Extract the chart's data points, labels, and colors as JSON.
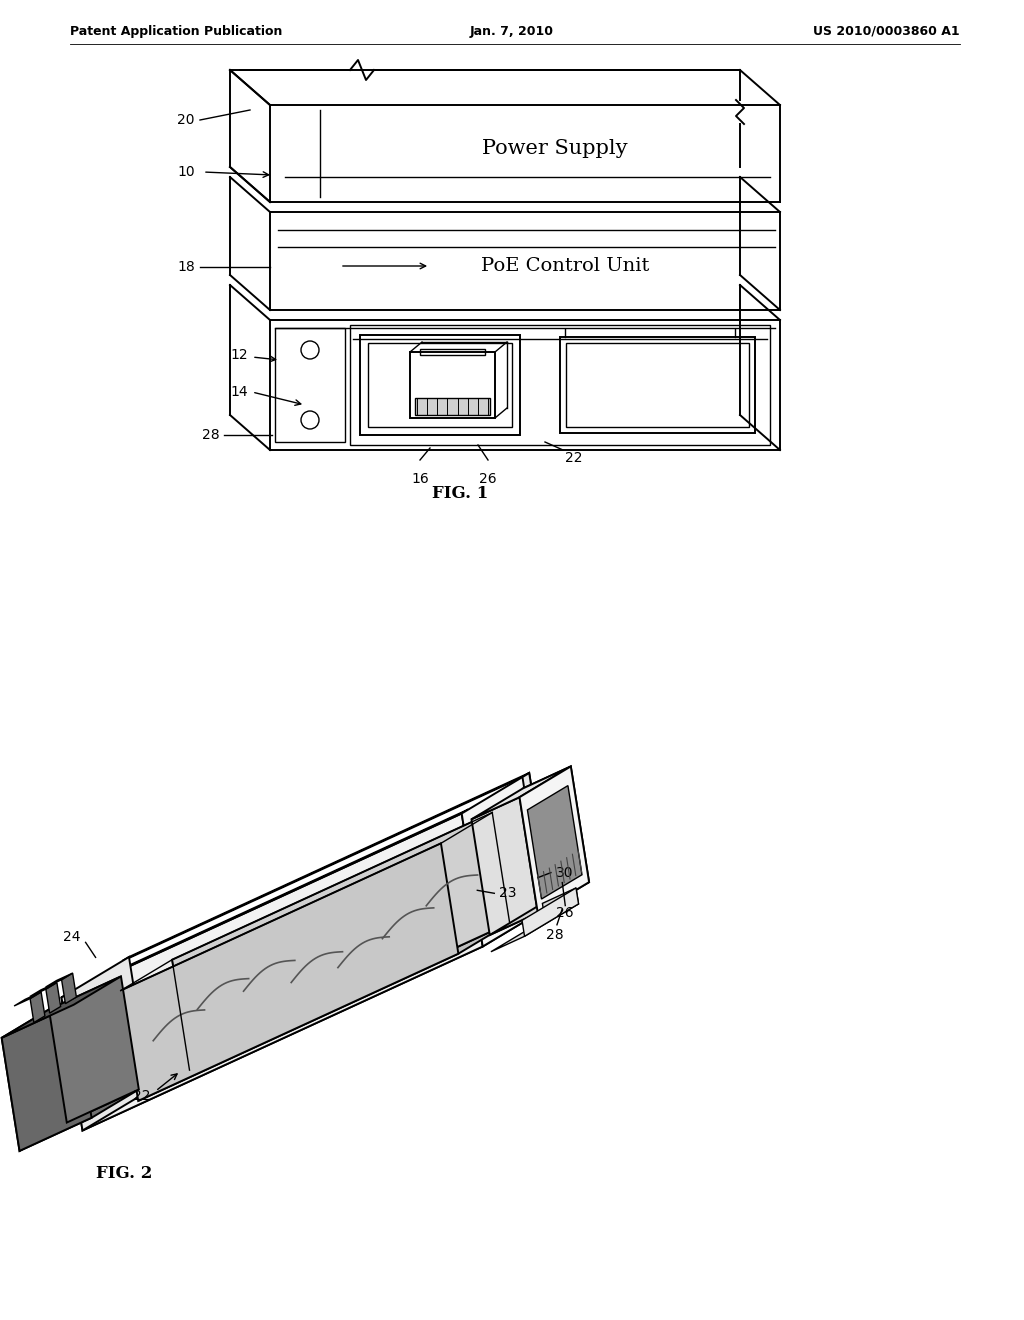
{
  "background_color": "#ffffff",
  "header": {
    "left": "Patent Application Publication",
    "center": "Jan. 7, 2010",
    "right": "US 2010/0003860 A1"
  },
  "fig1_label": "FIG. 1",
  "fig2_label": "FIG. 2"
}
